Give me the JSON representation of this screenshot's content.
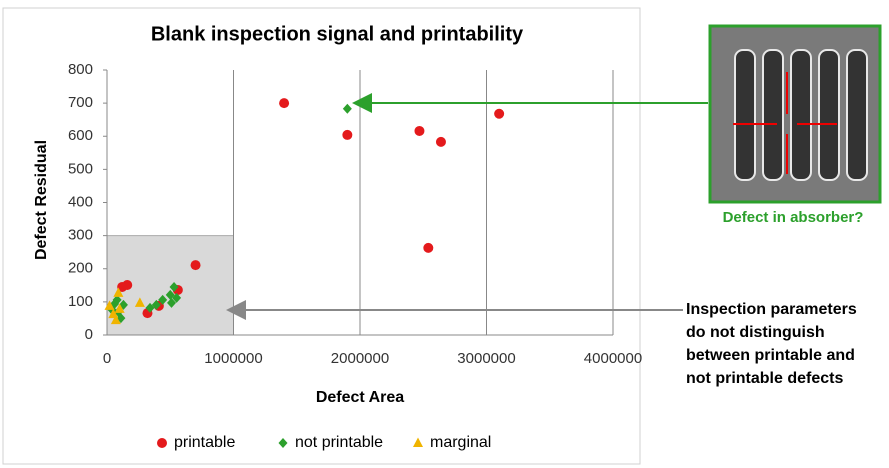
{
  "chart_data": {
    "type": "scatter",
    "title": "Blank inspection signal and printability",
    "x_label": "Defect Area",
    "y_label": "Defect  Residual",
    "xlim": [
      0,
      4000000
    ],
    "ylim": [
      0,
      800
    ],
    "xticks": [
      0,
      1000000,
      2000000,
      3000000,
      4000000
    ],
    "yticks": [
      0,
      100,
      200,
      300,
      400,
      500,
      600,
      700,
      800
    ],
    "grid": "x",
    "legend": "bottom",
    "highlight_region": {
      "x": [
        0,
        1000000
      ],
      "y": [
        0,
        300
      ],
      "color": "#d9d9d9"
    },
    "series": [
      {
        "name": "printable",
        "color": "#e41a1c",
        "marker": "circle",
        "x": [
          1400000,
          1900000,
          2470000,
          2640000,
          3100000,
          2540000,
          700000,
          120000,
          160000,
          560000,
          320000,
          410000
        ],
        "values": [
          700,
          604,
          616,
          583,
          668,
          263,
          211,
          145,
          151,
          136,
          66,
          88
        ]
      },
      {
        "name": "not printable",
        "color": "#2ca02c",
        "marker": "diamond",
        "x": [
          1900000,
          80000,
          110000,
          340000,
          390000,
          440000,
          500000,
          530000,
          550000,
          510000,
          40000,
          90000,
          130000,
          60000
        ],
        "values": [
          683,
          106,
          51,
          82,
          91,
          106,
          121,
          145,
          112,
          97,
          76,
          70,
          91,
          94
        ]
      },
      {
        "name": "marginal",
        "color": "#f0b400",
        "marker": "triangle",
        "x": [
          50000,
          90000,
          100000,
          260000,
          70000,
          20000
        ],
        "values": [
          63,
          127,
          79,
          97,
          45,
          88
        ]
      }
    ],
    "annotations": {
      "image_caption": "Defect in absorber?",
      "note": [
        "Inspection parameters",
        "do not distinguish",
        "between printable and",
        "not printable  defects"
      ]
    }
  }
}
